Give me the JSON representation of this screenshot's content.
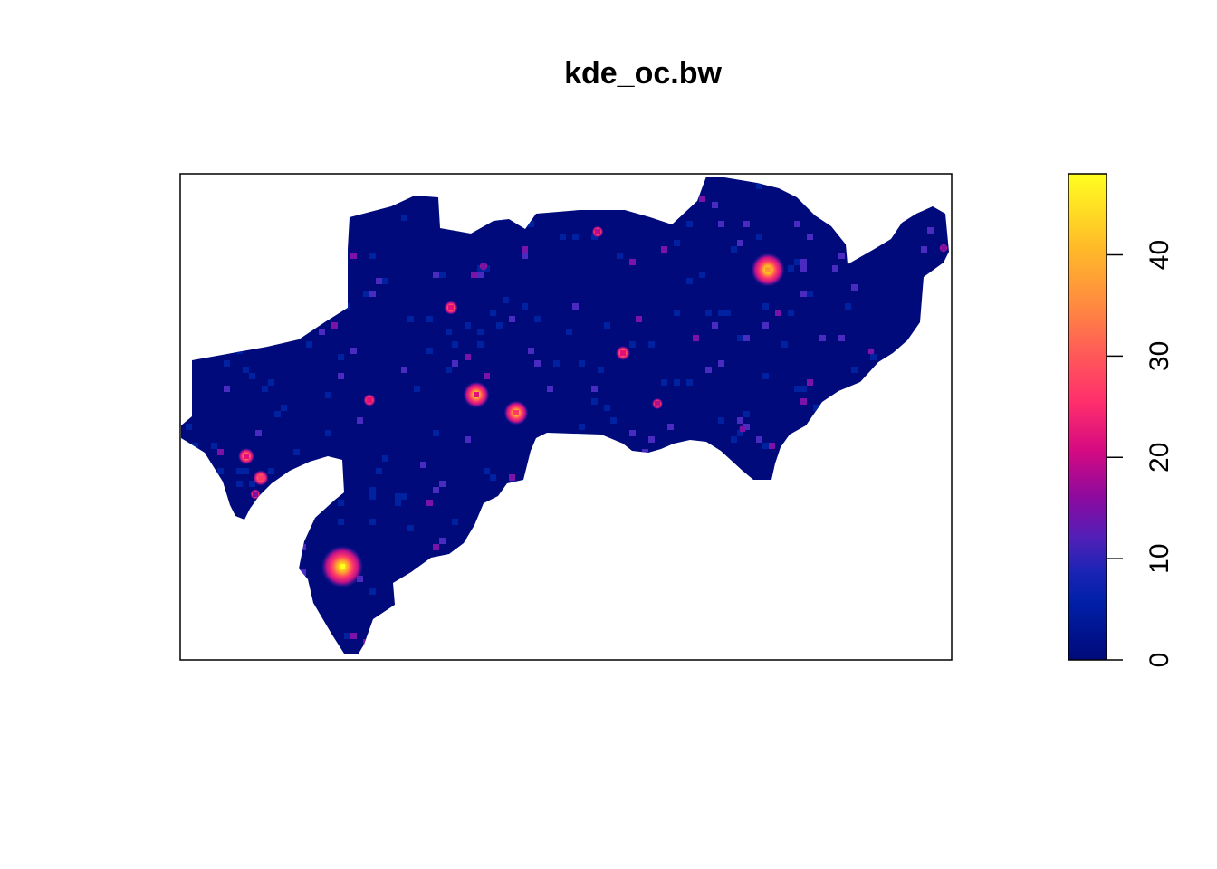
{
  "chart_data": {
    "type": "heatmap",
    "title": "kde_oc.bw",
    "xlabel": "",
    "ylabel": "",
    "axes_drawn": false,
    "grid": false,
    "legend": {
      "type": "colorbar",
      "position": "right",
      "range": [
        0,
        48
      ],
      "ticks": [
        0,
        10,
        20,
        30,
        40
      ],
      "tick_labels": [
        "0",
        "10",
        "20",
        "30",
        "40"
      ],
      "colors": [
        "#0a0a7a",
        "#0022a0",
        "#4a2bc0",
        "#7b13a8",
        "#b0108c",
        "#e2107a",
        "#ff3a68",
        "#ff6a50",
        "#ff9a32",
        "#ffc81c",
        "#ffff20"
      ]
    },
    "background_value": 1,
    "hotspots": [
      {
        "label": "northeast hotspot",
        "value": 40
      },
      {
        "label": "southwest hotspot",
        "value": 46
      },
      {
        "label": "central hotspot",
        "value": 26
      },
      {
        "label": "central east hotspot",
        "value": 30
      },
      {
        "label": "north hotspot",
        "value": 24
      },
      {
        "label": "west hotspot",
        "value": 22
      },
      {
        "label": "central north hotspot",
        "value": 20
      },
      {
        "label": "east edge hotspot",
        "value": 22
      }
    ]
  }
}
